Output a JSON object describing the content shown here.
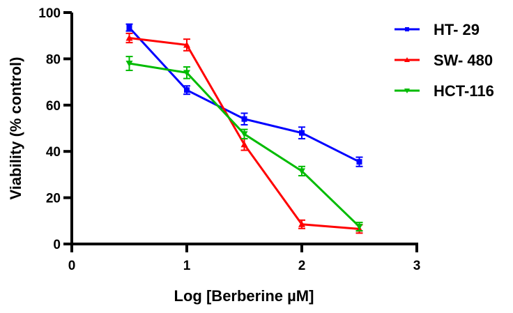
{
  "chart_data": {
    "type": "line",
    "title": "",
    "xlabel": "Log [Berberine µM]",
    "ylabel": "Viability (% control)",
    "xlim": [
      0,
      3
    ],
    "ylim": [
      0,
      100
    ],
    "xticks": [
      "0",
      "1",
      "2",
      "3"
    ],
    "yticks": [
      "0",
      "20",
      "40",
      "60",
      "80",
      "100"
    ],
    "grid": false,
    "legend_position": "top-right, outside plot",
    "x": [
      0.5,
      1,
      1.5,
      2,
      2.5
    ],
    "series": [
      {
        "name": "HT- 29",
        "color": "#0000ff",
        "marker": "square",
        "values": [
          93.5,
          66.5,
          54,
          48,
          35.5
        ],
        "errors": [
          1.5,
          1.8,
          2.5,
          2.5,
          2
        ]
      },
      {
        "name": "SW- 480",
        "color": "#ff0000",
        "marker": "triangle-up",
        "values": [
          89,
          86,
          43,
          8.5,
          6.5
        ],
        "errors": [
          2,
          2.5,
          2.5,
          1.8,
          1.8
        ]
      },
      {
        "name": "HCT-116",
        "color": "#00bb00",
        "marker": "triangle-down",
        "values": [
          78,
          74,
          47.5,
          31.5,
          7.5
        ],
        "errors": [
          3,
          2.5,
          2,
          2,
          1.8
        ]
      }
    ]
  }
}
